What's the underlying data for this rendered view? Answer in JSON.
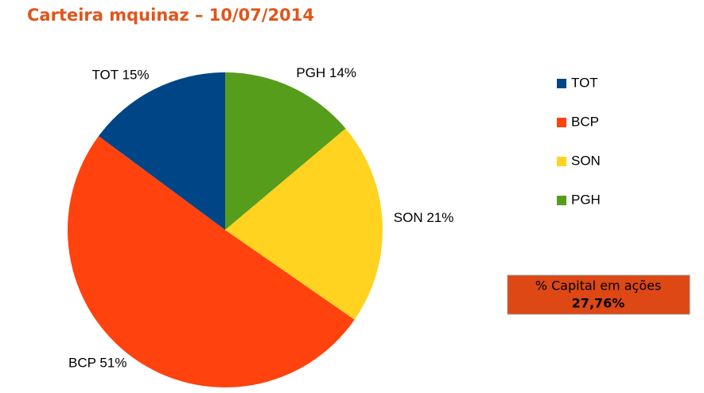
{
  "chart_data": {
    "type": "pie",
    "title": "Carteira mquinaz – 10/07/2014",
    "categories": [
      "TOT",
      "BCP",
      "SON",
      "PGH"
    ],
    "values": [
      15,
      51,
      21,
      14
    ],
    "value_labels": [
      "15%",
      "51%",
      "21%",
      "14%"
    ],
    "colors": [
      "#004586",
      "#ff420e",
      "#ffd320",
      "#579d1c"
    ],
    "legend": "right",
    "annotation": {
      "label": "% Capital em ações",
      "value": "27,76%"
    }
  }
}
